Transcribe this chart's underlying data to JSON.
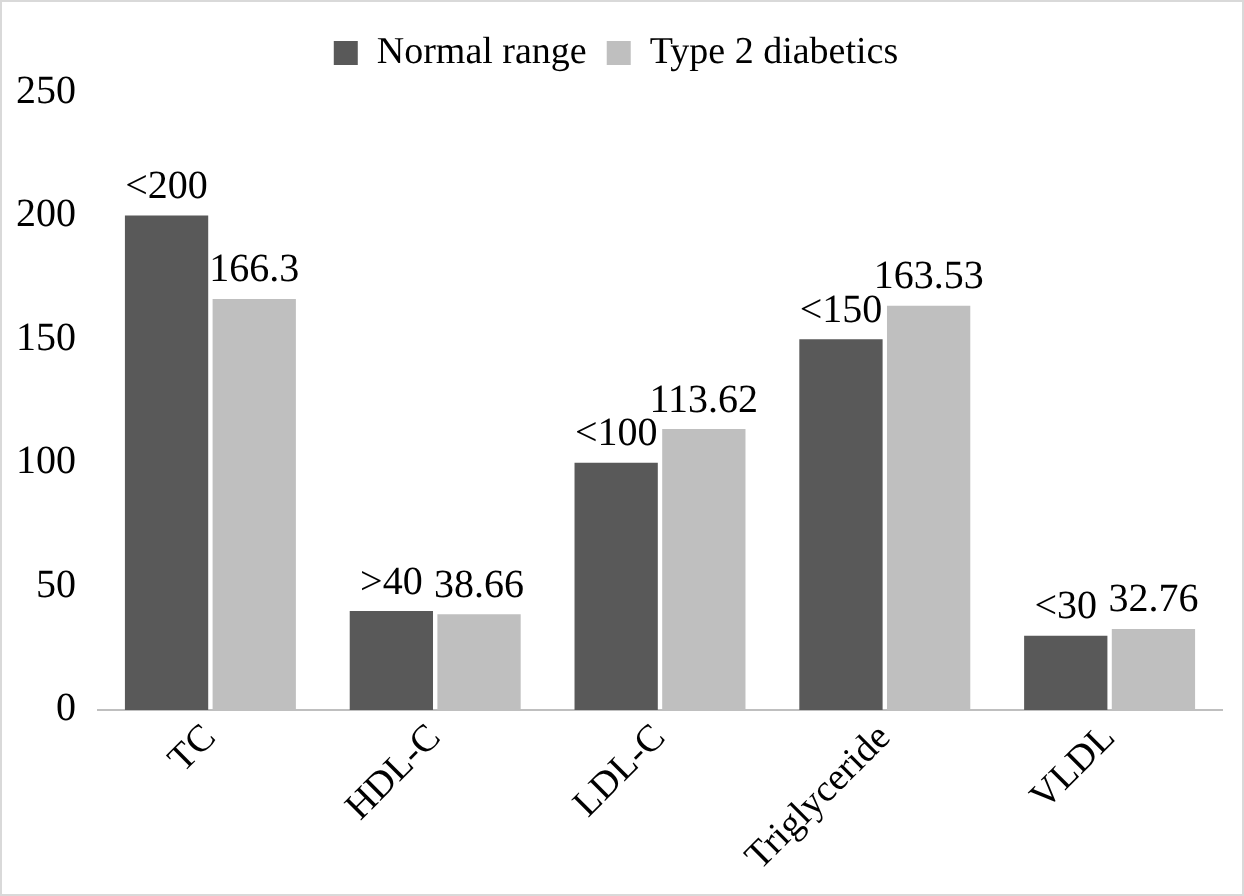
{
  "chart_data": {
    "type": "bar",
    "categories": [
      "TC",
      "HDL-C",
      "LDL-C",
      "Triglyceride",
      "VLDL"
    ],
    "series": [
      {
        "name": "Normal range",
        "color": "#595959",
        "values": [
          200,
          40,
          100,
          150,
          30
        ],
        "value_labels": [
          "<200",
          ">40",
          "<100",
          "<150",
          "<30"
        ]
      },
      {
        "name": "Type 2 diabetics",
        "color": "#bfbfbf",
        "values": [
          166.3,
          38.66,
          113.62,
          163.53,
          32.76
        ],
        "value_labels": [
          "166.3",
          "38.66",
          "113.62",
          "163.53",
          "32.76"
        ]
      }
    ],
    "ylim": [
      0,
      250
    ],
    "yticks": [
      0,
      50,
      100,
      150,
      200,
      250
    ],
    "grid": false,
    "legend": "top"
  }
}
